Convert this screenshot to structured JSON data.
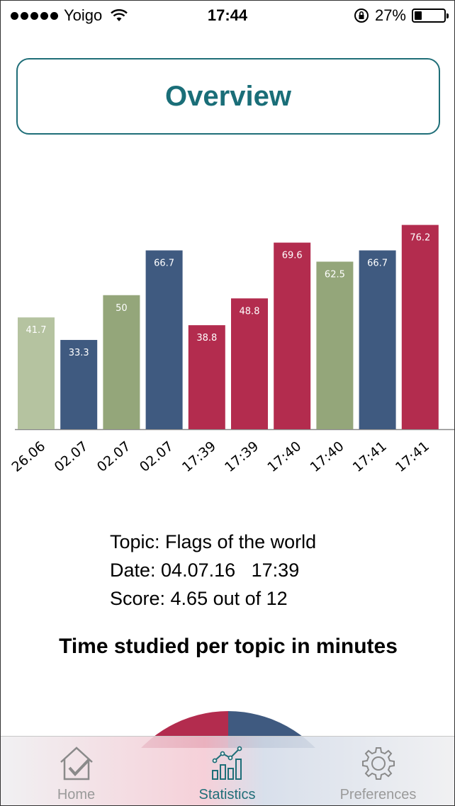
{
  "status_bar": {
    "carrier": "Yoigo",
    "time": "17:44",
    "battery": "27%"
  },
  "overview_label": "Overview",
  "chart_data": {
    "type": "bar",
    "categories": [
      "26.06",
      "02.07",
      "02.07",
      "02.07",
      "17:39",
      "17:39",
      "17:40",
      "17:40",
      "17:41",
      "17:41"
    ],
    "values": [
      41.7,
      33.3,
      50,
      66.7,
      38.8,
      48.8,
      69.6,
      62.5,
      66.7,
      76.2
    ],
    "value_labels": [
      "41.7",
      "33.3",
      "50",
      "66.7",
      "38.8",
      "48.8",
      "69.6",
      "62.5",
      "66.7",
      "76.2"
    ],
    "colors": [
      "#b5c3a0",
      "#3f5a80",
      "#94a67a",
      "#3f5a80",
      "#b32c4e",
      "#b32c4e",
      "#b32c4e",
      "#94a67a",
      "#3f5a80",
      "#b32c4e"
    ],
    "ylim": [
      0,
      80
    ],
    "grid": false,
    "title": "",
    "xlabel": "",
    "ylabel": ""
  },
  "info": {
    "topic": "Topic: Flags of the world",
    "date": "Date: 04.07.16   17:39",
    "score": "Score: 4.65 out of 12"
  },
  "time_chart_title": "Time studied per topic in minutes",
  "pie_colors": [
    "#b32c4e",
    "#3f5a80"
  ],
  "tabs": [
    {
      "label": "Home",
      "icon": "home-check-icon",
      "active": false
    },
    {
      "label": "Statistics",
      "icon": "statistics-chart-icon",
      "active": true
    },
    {
      "label": "Preferences",
      "icon": "gear-icon",
      "active": false
    }
  ]
}
